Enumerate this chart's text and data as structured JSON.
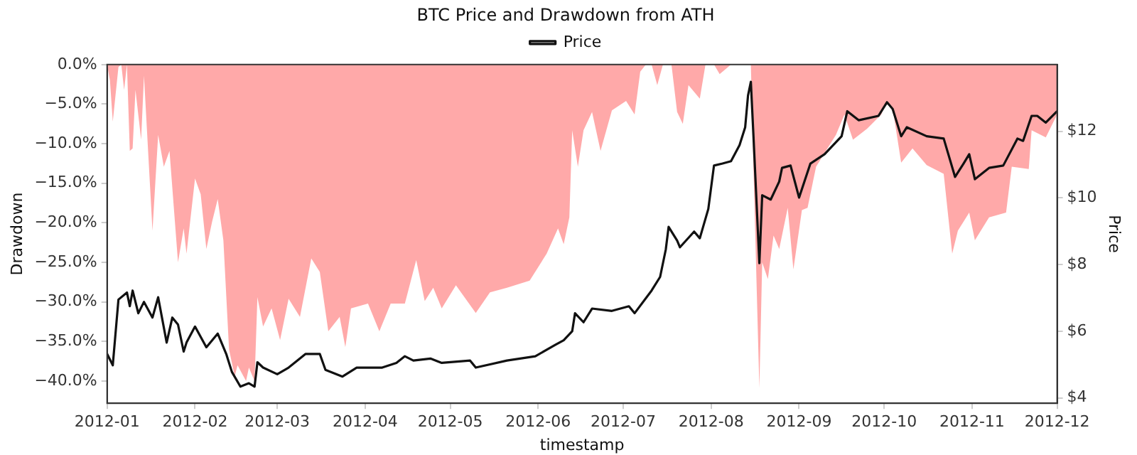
{
  "chart_data": {
    "type": "line",
    "title": "BTC Price and Drawdown from ATH",
    "xlabel": "timestamp",
    "ylabel": "Drawdown",
    "y2label": "Price",
    "xlim": [
      "2012-01",
      "2012-12"
    ],
    "xticks": [
      "2012-01",
      "2012-02",
      "2012-03",
      "2012-04",
      "2012-05",
      "2012-06",
      "2012-07",
      "2012-08",
      "2012-09",
      "2012-10",
      "2012-11",
      "2012-12"
    ],
    "ylim": [
      -42.8,
      0
    ],
    "yticks": [
      {
        "value": 0,
        "label": "0.0%"
      },
      {
        "value": -5,
        "label": "−5.0%"
      },
      {
        "value": -10,
        "label": "−10.0%"
      },
      {
        "value": -15,
        "label": "−15.0%"
      },
      {
        "value": -20,
        "label": "−20.0%"
      },
      {
        "value": -25,
        "label": "−25.0%"
      },
      {
        "value": -30,
        "label": "−30.0%"
      },
      {
        "value": -35,
        "label": "−35.0%"
      },
      {
        "value": -40,
        "label": "−40.0%"
      }
    ],
    "y2lim": [
      3.84,
      14
    ],
    "y2ticks": [
      {
        "value": 4,
        "label": "$4"
      },
      {
        "value": 6,
        "label": "$6"
      },
      {
        "value": 8,
        "label": "$8"
      },
      {
        "value": 10,
        "label": "$10"
      },
      {
        "value": 12,
        "label": "$12"
      }
    ],
    "grid": false,
    "legend": "top",
    "marker": "none",
    "line_style": "solid",
    "series": [
      {
        "type": "area",
        "color": "#ff7070",
        "x": [
          "2012-01-01",
          "2012-01-02",
          "2012-01-03",
          "2012-01-05",
          "2012-01-06",
          "2012-01-07",
          "2012-01-08",
          "2012-01-09",
          "2012-01-10",
          "2012-01-11",
          "2012-01-13",
          "2012-01-14",
          "2012-01-17",
          "2012-01-19",
          "2012-01-21",
          "2012-01-23",
          "2012-01-26",
          "2012-01-28",
          "2012-01-29",
          "2012-02-01",
          "2012-02-03",
          "2012-02-05",
          "2012-02-07",
          "2012-02-09",
          "2012-02-11",
          "2012-02-13",
          "2012-02-15",
          "2012-02-16",
          "2012-02-19",
          "2012-02-20",
          "2012-02-22",
          "2012-02-23",
          "2012-02-25",
          "2012-02-28",
          "2012-03-02",
          "2012-03-05",
          "2012-03-09",
          "2012-03-13",
          "2012-03-16",
          "2012-03-19",
          "2012-03-23",
          "2012-03-25",
          "2012-03-27",
          "2012-04-02",
          "2012-04-06",
          "2012-04-10",
          "2012-04-15",
          "2012-04-19",
          "2012-04-22",
          "2012-04-25",
          "2012-04-28",
          "2012-05-03",
          "2012-05-10",
          "2012-05-15",
          "2012-05-21",
          "2012-05-29",
          "2012-06-04",
          "2012-06-08",
          "2012-06-10",
          "2012-06-12",
          "2012-06-13",
          "2012-06-15",
          "2012-06-17",
          "2012-06-20",
          "2012-06-23",
          "2012-06-27",
          "2012-07-02",
          "2012-07-05",
          "2012-07-07",
          "2012-07-09",
          "2012-07-11",
          "2012-07-13",
          "2012-07-15",
          "2012-07-18",
          "2012-07-20",
          "2012-07-22",
          "2012-07-24",
          "2012-07-28",
          "2012-07-30",
          "2012-08-02",
          "2012-08-04",
          "2012-08-08",
          "2012-08-15",
          "2012-08-16",
          "2012-08-18",
          "2012-08-19",
          "2012-08-21",
          "2012-08-23",
          "2012-08-25",
          "2012-08-28",
          "2012-08-30",
          "2012-09-02",
          "2012-09-04",
          "2012-09-07",
          "2012-09-11",
          "2012-09-14",
          "2012-09-17",
          "2012-09-20",
          "2012-09-25",
          "2012-09-30",
          "2012-10-02",
          "2012-10-04",
          "2012-10-07",
          "2012-10-11",
          "2012-10-16",
          "2012-10-22",
          "2012-10-25",
          "2012-10-27",
          "2012-10-31",
          "2012-11-02",
          "2012-11-07",
          "2012-11-13",
          "2012-11-15",
          "2012-11-21",
          "2012-11-22",
          "2012-11-27",
          "2012-12-01"
        ],
        "values": [
          0,
          -2.0,
          -7.2,
          -0.3,
          0,
          -3.2,
          0,
          -10.9,
          -10.6,
          -3.2,
          -9.5,
          -1.4,
          -21.0,
          -8.9,
          -12.9,
          -10.9,
          -25.0,
          -20.7,
          -23.9,
          -14.4,
          -16.4,
          -23.3,
          -19.9,
          -17.0,
          -22.2,
          -36.0,
          -39.4,
          -38.0,
          -40.0,
          -38.3,
          -40.0,
          -29.4,
          -33.1,
          -30.8,
          -34.8,
          -29.6,
          -31.9,
          -24.5,
          -26.2,
          -33.7,
          -31.9,
          -35.7,
          -30.8,
          -30.2,
          -33.7,
          -30.2,
          -30.2,
          -24.7,
          -29.9,
          -28.2,
          -30.8,
          -27.9,
          -31.4,
          -28.8,
          -28.2,
          -27.3,
          -23.9,
          -20.7,
          -22.7,
          -19.3,
          -8.3,
          -12.9,
          -8.3,
          -6.0,
          -10.9,
          -5.8,
          -4.6,
          -6.3,
          -0.9,
          0,
          0,
          -2.6,
          0,
          0,
          -6.0,
          -7.5,
          -2.6,
          -4.3,
          0,
          0,
          -1.2,
          0,
          0,
          -14.1,
          -40.9,
          -25.0,
          -27.1,
          -21.6,
          -23.3,
          -18.1,
          -25.9,
          -18.4,
          -18.1,
          -12.9,
          -10.6,
          -8.9,
          -6.3,
          -9.5,
          -8.1,
          -6.3,
          -4.6,
          -5.5,
          -12.4,
          -10.6,
          -12.7,
          -13.8,
          -23.9,
          -21.0,
          -18.7,
          -22.2,
          -19.3,
          -18.7,
          -12.9,
          -13.2,
          -8.3,
          -9.2,
          -6.3
        ]
      },
      {
        "type": "line",
        "name": "Price",
        "color": "#111111",
        "axis": "y2",
        "x": [
          "2012-01-01",
          "2012-01-03",
          "2012-01-05",
          "2012-01-08",
          "2012-01-09",
          "2012-01-10",
          "2012-01-12",
          "2012-01-14",
          "2012-01-17",
          "2012-01-19",
          "2012-01-22",
          "2012-01-24",
          "2012-01-26",
          "2012-01-28",
          "2012-01-29",
          "2012-02-01",
          "2012-02-05",
          "2012-02-09",
          "2012-02-12",
          "2012-02-14",
          "2012-02-17",
          "2012-02-20",
          "2012-02-22",
          "2012-02-23",
          "2012-02-25",
          "2012-03-01",
          "2012-03-05",
          "2012-03-11",
          "2012-03-16",
          "2012-03-18",
          "2012-03-24",
          "2012-03-29",
          "2012-04-07",
          "2012-04-12",
          "2012-04-15",
          "2012-04-18",
          "2012-04-24",
          "2012-04-28",
          "2012-05-08",
          "2012-05-10",
          "2012-05-21",
          "2012-05-31",
          "2012-06-07",
          "2012-06-10",
          "2012-06-13",
          "2012-06-14",
          "2012-06-17",
          "2012-06-20",
          "2012-06-27",
          "2012-07-03",
          "2012-07-05",
          "2012-07-11",
          "2012-07-14",
          "2012-07-16",
          "2012-07-17",
          "2012-07-20",
          "2012-07-21",
          "2012-07-26",
          "2012-07-28",
          "2012-07-31",
          "2012-08-02",
          "2012-08-05",
          "2012-08-08",
          "2012-08-11",
          "2012-08-13",
          "2012-08-14",
          "2012-08-15",
          "2012-08-16",
          "2012-08-18",
          "2012-08-19",
          "2012-08-22",
          "2012-08-25",
          "2012-08-26",
          "2012-08-29",
          "2012-09-01",
          "2012-09-05",
          "2012-09-10",
          "2012-09-16",
          "2012-09-18",
          "2012-09-22",
          "2012-09-29",
          "2012-10-02",
          "2012-10-04",
          "2012-10-07",
          "2012-10-09",
          "2012-10-16",
          "2012-10-22",
          "2012-10-26",
          "2012-10-29",
          "2012-10-31",
          "2012-11-02",
          "2012-11-07",
          "2012-11-12",
          "2012-11-17",
          "2012-11-19",
          "2012-11-22",
          "2012-11-24",
          "2012-11-27",
          "2012-12-01"
        ],
        "values": [
          5.32,
          4.98,
          6.95,
          7.16,
          6.75,
          7.22,
          6.54,
          6.88,
          6.41,
          7.02,
          5.66,
          6.41,
          6.2,
          5.39,
          5.66,
          6.14,
          5.52,
          5.93,
          5.32,
          4.78,
          4.34,
          4.44,
          4.34,
          5.07,
          4.91,
          4.71,
          4.91,
          5.32,
          5.32,
          4.84,
          4.64,
          4.91,
          4.91,
          5.05,
          5.25,
          5.12,
          5.18,
          5.05,
          5.12,
          4.91,
          5.12,
          5.25,
          5.59,
          5.73,
          6.0,
          6.54,
          6.27,
          6.68,
          6.61,
          6.75,
          6.54,
          7.22,
          7.63,
          8.45,
          9.13,
          8.72,
          8.52,
          8.99,
          8.79,
          9.67,
          10.97,
          11.03,
          11.1,
          11.58,
          12.12,
          13.07,
          13.48,
          11.71,
          8.04,
          10.08,
          9.95,
          10.49,
          10.9,
          10.97,
          10.01,
          11.03,
          11.31,
          11.85,
          12.6,
          12.33,
          12.46,
          12.87,
          12.67,
          11.85,
          12.12,
          11.85,
          11.78,
          10.63,
          11.03,
          11.31,
          10.56,
          10.9,
          10.97,
          11.78,
          11.71,
          12.46,
          12.46,
          12.26,
          12.6
        ]
      }
    ]
  }
}
